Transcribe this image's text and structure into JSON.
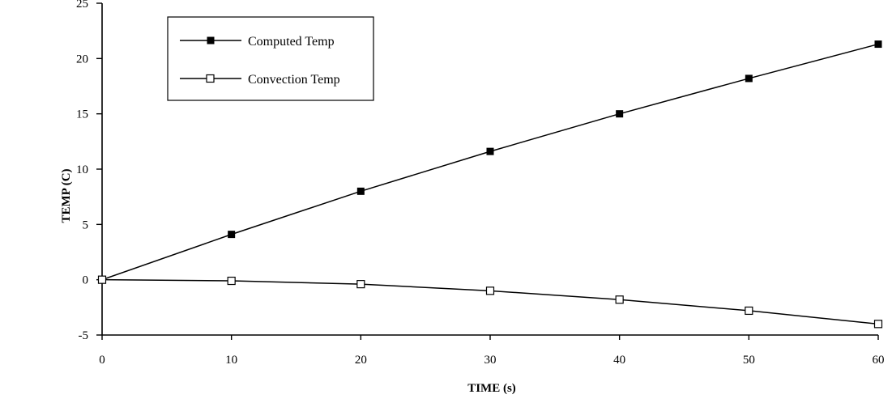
{
  "chart_data": {
    "type": "line",
    "title": "",
    "xlabel": "TIME (s)",
    "ylabel": "TEMP (C)",
    "xlim": [
      0,
      60
    ],
    "ylim": [
      -5,
      25
    ],
    "xticks": [
      0,
      10,
      20,
      30,
      40,
      50,
      60
    ],
    "yticks": [
      -5,
      0,
      5,
      10,
      15,
      20,
      25
    ],
    "x": [
      0,
      10,
      20,
      30,
      40,
      50,
      60
    ],
    "grid": false,
    "legend_position": "top-left",
    "series": [
      {
        "name": "Computed Temp",
        "marker": "filled-square",
        "color": "#000000",
        "values": [
          0,
          4.1,
          8.0,
          11.6,
          15.0,
          18.2,
          21.3
        ]
      },
      {
        "name": "Convection Temp",
        "marker": "open-square",
        "color": "#000000",
        "values": [
          0,
          -0.1,
          -0.4,
          -1.0,
          -1.8,
          -2.8,
          -4.0
        ]
      }
    ]
  }
}
